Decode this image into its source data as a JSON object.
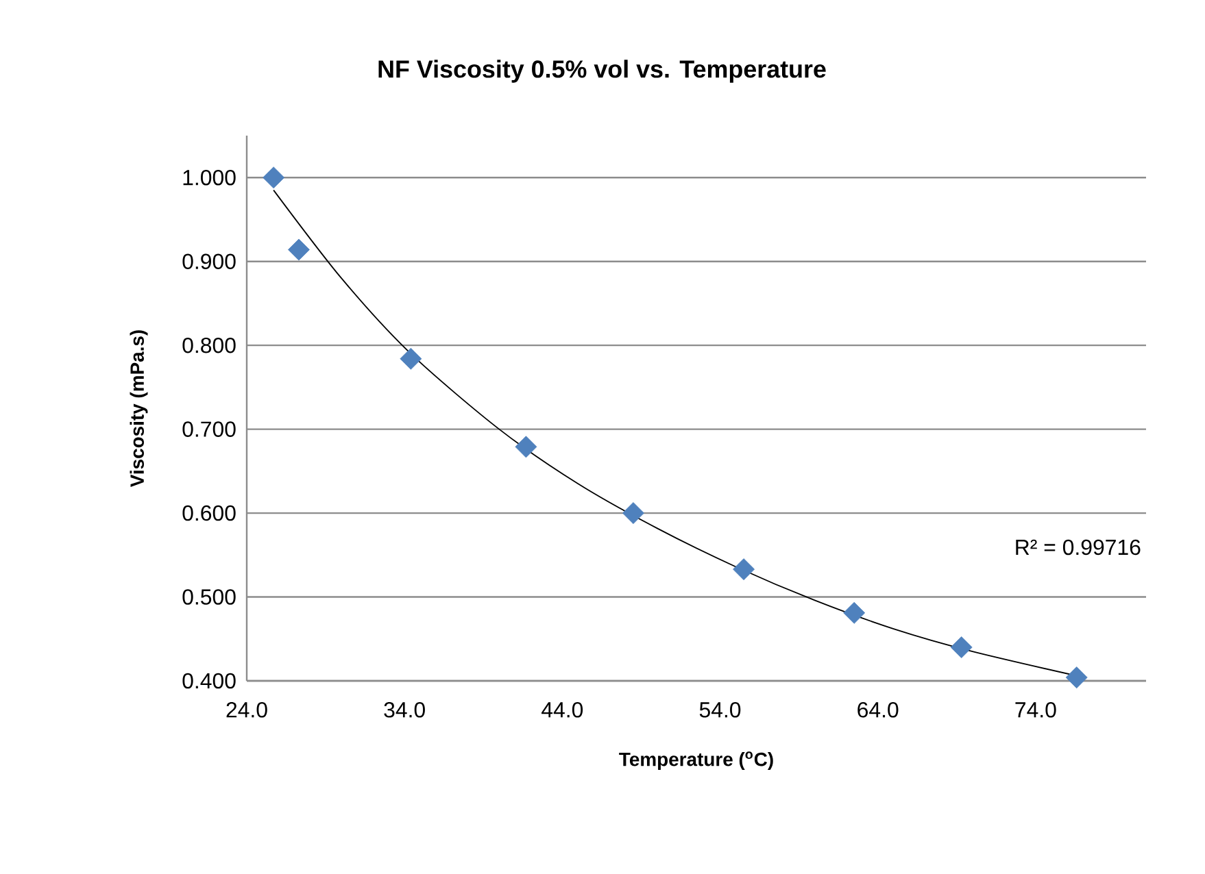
{
  "chart_data": {
    "type": "scatter",
    "title": "NF Viscosity 0.5% vol vs. Temperature",
    "xlabel": "Temperature ($^{o}$C)",
    "ylabel": "Viscosity (mPa.s)",
    "annotations": [
      "R² = 0.99716"
    ],
    "series": [
      {
        "color": "#4f81bd",
        "marker": "diamond",
        "x": [
          25.7,
          27.3,
          34.4,
          41.7,
          48.5,
          55.5,
          62.5,
          69.3,
          76.6
        ],
        "values": [
          1.0,
          0.914,
          0.784,
          0.679,
          0.6,
          0.533,
          0.481,
          0.44,
          0.404
        ]
      },
      {
        "type": "line",
        "color": "#000000",
        "marker": "none",
        "line_style": "solid",
        "x": [
          25.7,
          30,
          34.4,
          40,
          45,
          50,
          55,
          60,
          65,
          70,
          76.6
        ],
        "values": [
          0.985,
          0.88,
          0.79,
          0.7,
          0.635,
          0.582,
          0.536,
          0.496,
          0.462,
          0.435,
          0.406
        ]
      }
    ],
    "xlim": [
      24,
      81
    ],
    "ylim": [
      0.4,
      1.05
    ],
    "xticks": [
      {
        "value": 24,
        "label": "24.0"
      },
      {
        "value": 34,
        "label": "34.0"
      },
      {
        "value": 44,
        "label": "44.0"
      },
      {
        "value": 54,
        "label": "54.0"
      },
      {
        "value": 64,
        "label": "64.0"
      },
      {
        "value": 74,
        "label": "74.0"
      }
    ],
    "yticks": [
      {
        "value": 0.4,
        "label": "0.400"
      },
      {
        "value": 0.5,
        "label": "0.500"
      },
      {
        "value": 0.6,
        "label": "0.600"
      },
      {
        "value": 0.7,
        "label": "0.700"
      },
      {
        "value": 0.8,
        "label": "0.800"
      },
      {
        "value": 0.9,
        "label": "0.900"
      },
      {
        "value": 1.0,
        "label": "1.000"
      }
    ],
    "grid": "y"
  }
}
